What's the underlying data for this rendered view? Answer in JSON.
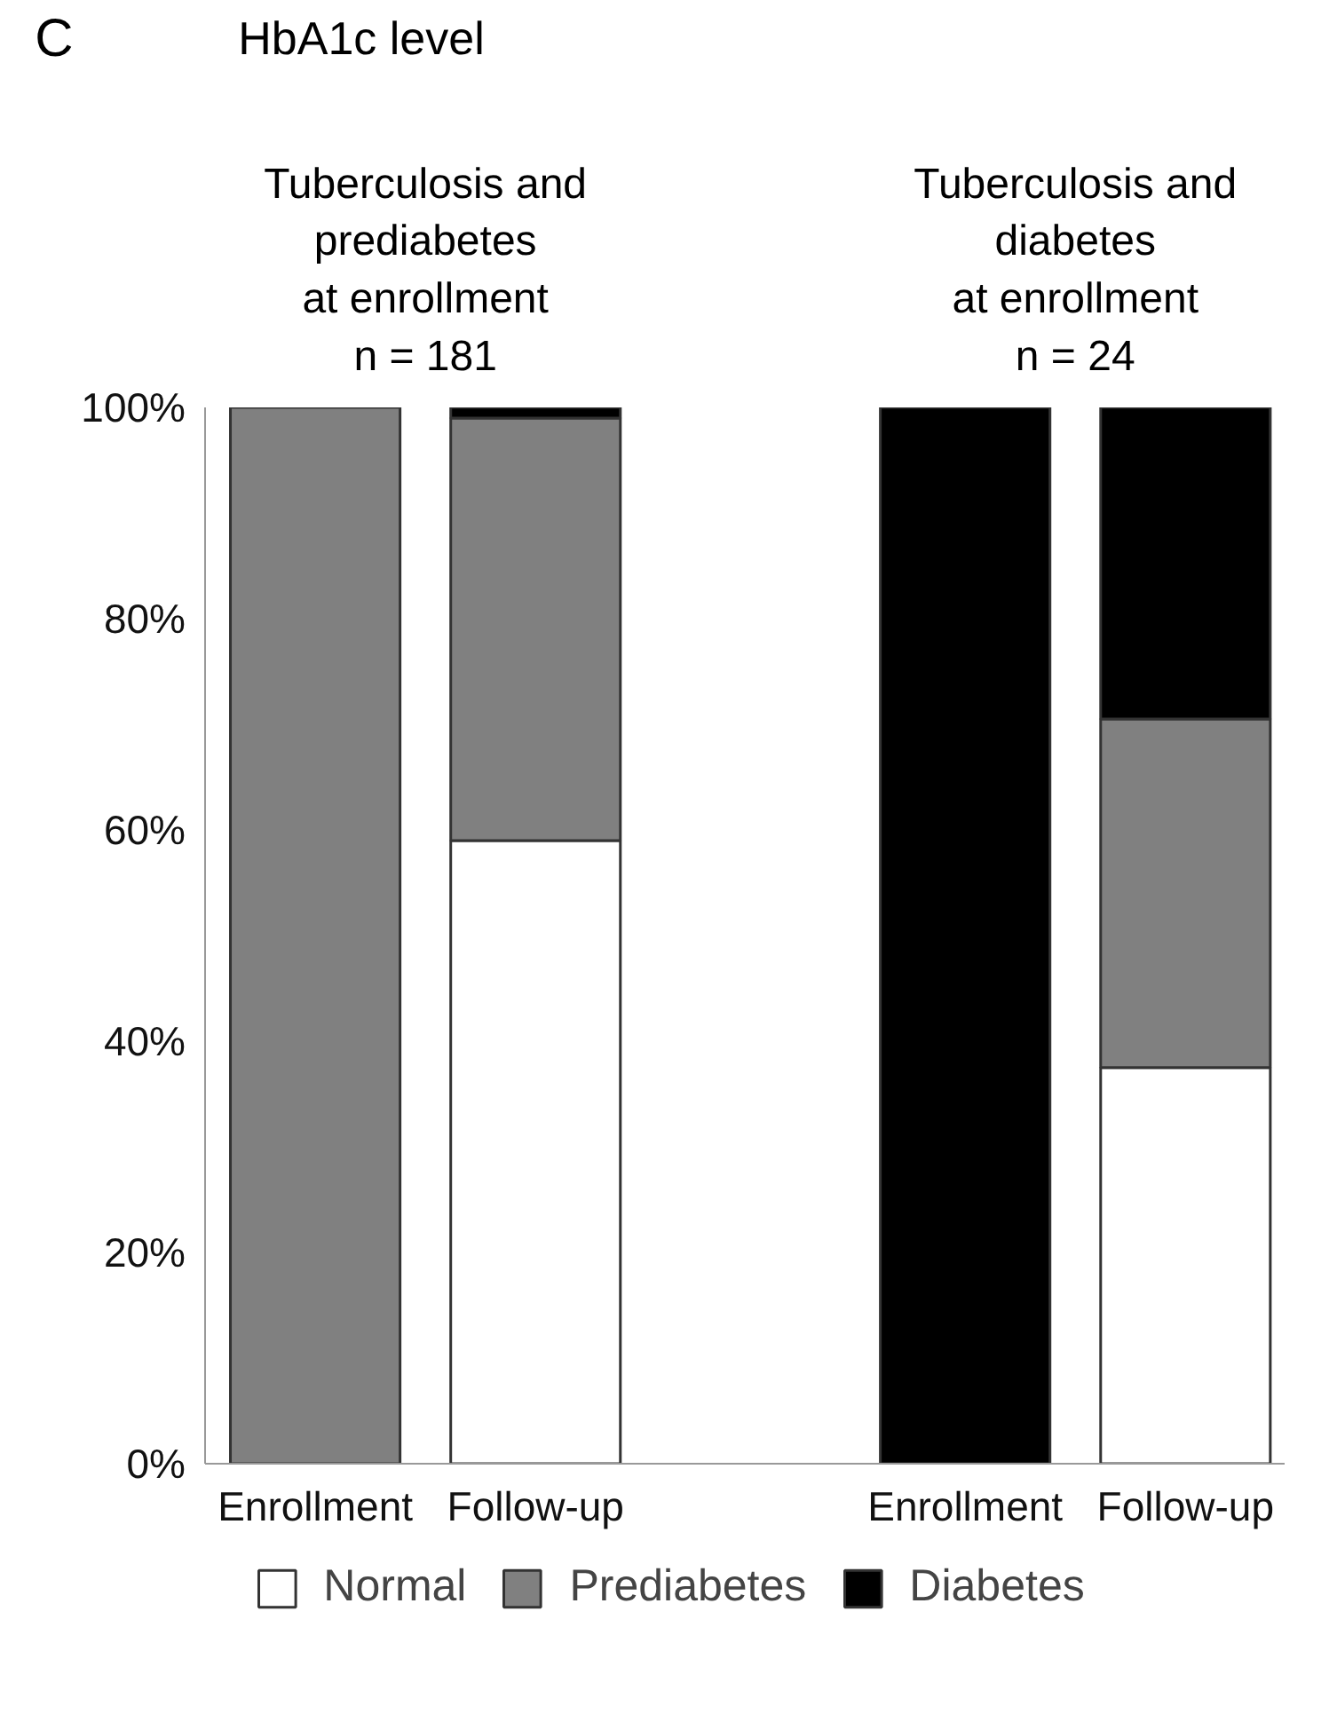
{
  "chart_data": {
    "type": "bar",
    "stacked": true,
    "title": "HbA1c level",
    "categories": [
      "Enrollment",
      "Follow-up",
      "Enrollment",
      "Follow-up"
    ],
    "series": [
      {
        "name": "Normal",
        "color": "#ffffff",
        "values": [
          0,
          59,
          0,
          37.5
        ]
      },
      {
        "name": "Prediabetes",
        "color": "#808080",
        "values": [
          100,
          40,
          0,
          33
        ]
      },
      {
        "name": "Diabetes",
        "color": "#000000",
        "values": [
          0,
          1,
          100,
          29.5
        ]
      }
    ],
    "ylim": [
      0,
      100
    ],
    "yticks": [
      {
        "value": 0,
        "label": "0%"
      },
      {
        "value": 20,
        "label": "20%"
      },
      {
        "value": 40,
        "label": "40%"
      },
      {
        "value": 60,
        "label": "60%"
      },
      {
        "value": 80,
        "label": "80%"
      },
      {
        "value": 100,
        "label": "100%"
      }
    ],
    "grid": false,
    "legend": "bottom",
    "annotations": [
      "C",
      "Tuberculosis and\nprediabetes\nat enrollment\nn = 181",
      "Tuberculosis and\ndiabetes\nat enrollment\nn = 24"
    ]
  }
}
